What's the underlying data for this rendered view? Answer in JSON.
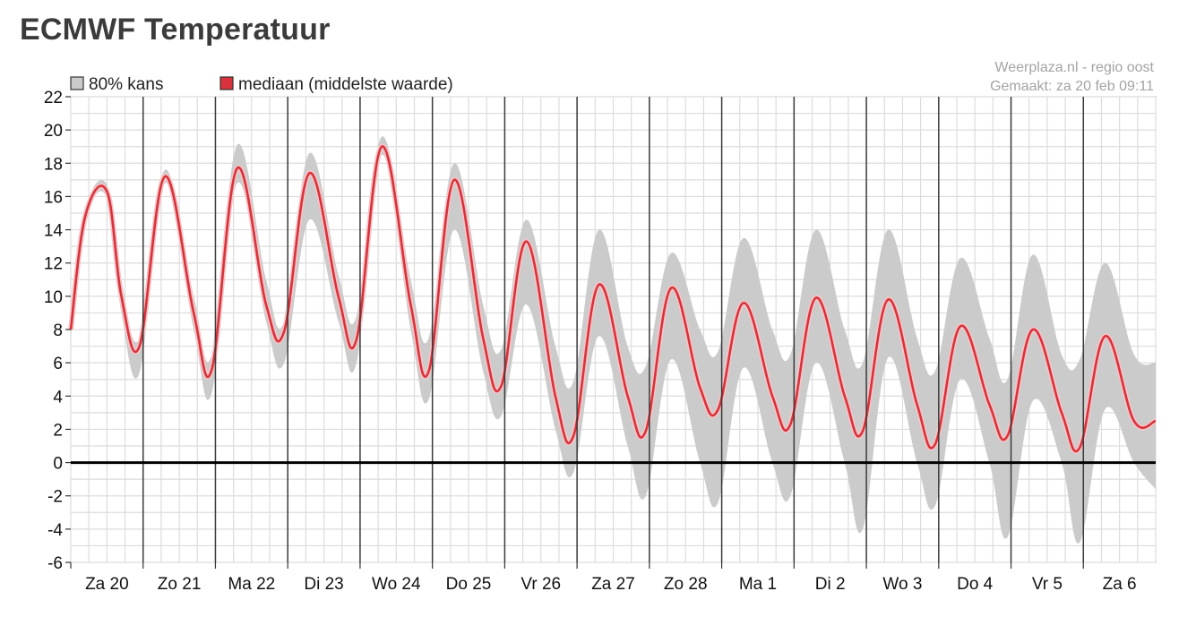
{
  "page": {
    "title": "ECMWF Temperatuur"
  },
  "credits": {
    "source": "Weerplaza.nl - regio oost",
    "made": "Gemaakt: za 20 feb 09:11"
  },
  "colors": {
    "band": "#cbcbcb",
    "median": "#d9323c",
    "median_halo": "#f4c4c6",
    "grid": "#dcdcdc",
    "day_line": "#3a3a3a",
    "zero_line": "#000000"
  },
  "chart_data": {
    "type": "area",
    "title": "ECMWF Temperatuur",
    "ylim": [
      -6,
      22
    ],
    "yticks": [
      22,
      20,
      18,
      16,
      14,
      12,
      10,
      8,
      6,
      4,
      2,
      0,
      -2,
      -4,
      -6
    ],
    "xlim": [
      0,
      15
    ],
    "grid": true,
    "legend": {
      "position": "top-left",
      "entries": [
        {
          "name": "80% kans",
          "color": "#cbcbcb"
        },
        {
          "name": "mediaan (middelste waarde)",
          "color": "#d9323c"
        }
      ]
    },
    "x_labels": [
      "Za 20",
      "Zo 21",
      "Ma 22",
      "Di 23",
      "Wo 24",
      "Do 25",
      "Vr 26",
      "Za 27",
      "Zo 28",
      "Ma 1",
      "Di 2",
      "Wo 3",
      "Do 4",
      "Vr 5",
      "Za 6"
    ],
    "series": [
      {
        "name": "mediaan (middelste waarde)",
        "x": [
          0,
          0.2,
          0.5,
          0.7,
          0.95,
          1.3,
          1.7,
          1.95,
          2.3,
          2.7,
          2.95,
          3.3,
          3.7,
          3.95,
          4.3,
          4.7,
          4.95,
          5.3,
          5.7,
          5.95,
          6.3,
          6.7,
          6.95,
          7.3,
          7.7,
          7.95,
          8.3,
          8.7,
          8.95,
          9.3,
          9.7,
          9.95,
          10.3,
          10.7,
          10.95,
          11.3,
          11.7,
          11.95,
          12.3,
          12.7,
          12.95,
          13.3,
          13.7,
          13.95,
          14.3,
          14.7,
          15.0
        ],
        "values": [
          8,
          14.8,
          16.3,
          10,
          7,
          17.2,
          9,
          5.6,
          17.7,
          9.5,
          7.9,
          17.4,
          10,
          7.4,
          19.0,
          9.5,
          5.5,
          17.0,
          7.5,
          4.6,
          13.3,
          4,
          1.6,
          10.7,
          4,
          1.9,
          10.5,
          4.5,
          3.2,
          9.6,
          4,
          2.3,
          9.9,
          4,
          1.9,
          9.8,
          3.5,
          1.1,
          8.2,
          3.5,
          1.6,
          8.0,
          3,
          0.9,
          7.6,
          2.5,
          2.5
        ]
      },
      {
        "name": "80% kans",
        "x": [
          0,
          0.2,
          0.5,
          0.7,
          0.95,
          1.3,
          1.7,
          1.95,
          2.3,
          2.7,
          2.95,
          3.3,
          3.7,
          3.95,
          4.3,
          4.7,
          4.95,
          5.3,
          5.7,
          5.95,
          6.3,
          6.7,
          6.95,
          7.3,
          7.7,
          7.95,
          8.3,
          8.7,
          8.95,
          9.3,
          9.7,
          9.95,
          10.3,
          10.7,
          10.95,
          11.3,
          11.7,
          11.95,
          12.3,
          12.7,
          12.95,
          13.3,
          13.7,
          13.95,
          14.3,
          14.7,
          15.0
        ],
        "lower": [
          7.5,
          14.5,
          15.9,
          9,
          5.4,
          16.8,
          8,
          4.2,
          16.8,
          8.5,
          6,
          14.6,
          8.5,
          6,
          18.5,
          8,
          3.8,
          14.0,
          5.5,
          2.8,
          9.5,
          2.0,
          -0.6,
          7.6,
          1.0,
          -2.0,
          6.2,
          0.0,
          -2.4,
          5.7,
          0.0,
          -2.0,
          6.0,
          0.0,
          -4.0,
          6.3,
          0.0,
          -2.6,
          5.0,
          0.0,
          -4.5,
          3.7,
          0.0,
          -4.8,
          3.2,
          0.0,
          -1.6
        ],
        "upper": [
          8.5,
          15.2,
          16.7,
          11,
          7.5,
          17.6,
          10,
          6.5,
          19.1,
          11,
          8.5,
          18.6,
          11.3,
          8.8,
          19.6,
          11,
          7.5,
          18.0,
          9.5,
          6.8,
          14.6,
          7,
          4.9,
          14.0,
          7,
          5.8,
          12.6,
          8,
          6.7,
          13.5,
          8,
          6.5,
          14.0,
          8,
          6.0,
          14.0,
          7.5,
          5.5,
          12.3,
          7.5,
          5.0,
          12.5,
          6.5,
          6.2,
          12.0,
          6.5,
          6.0
        ]
      }
    ]
  }
}
